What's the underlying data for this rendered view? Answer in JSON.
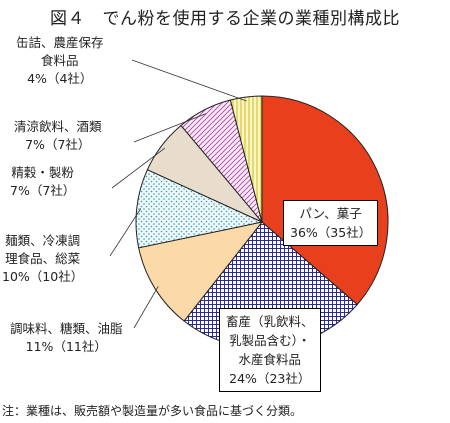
{
  "title": "図４　でん粉を使用する企業の業種別構成比",
  "note": "注：業種は、販売額や製造量が多い食品に基づく分類。",
  "chart_data": {
    "type": "pie",
    "title": "図４　でん粉を使用する企業の業種別構成比",
    "start": "12 o'clock, clockwise",
    "slices": [
      {
        "label_lines": [
          "パン、菓子",
          "36%（35社）"
        ],
        "name": "パン、菓子",
        "percent": 36,
        "companies": 35,
        "color": "#e8401c",
        "pattern": "solid"
      },
      {
        "label_lines": [
          "畜産（乳飲料、",
          "乳製品含む）・",
          "水産食料品",
          "24%（23社）"
        ],
        "name": "畜産（乳飲料、乳製品含む）・水産食料品",
        "percent": 24,
        "companies": 23,
        "color": "#2a2a9a",
        "pattern": "grid"
      },
      {
        "label_lines": [
          "調味料、糖類、油脂",
          "11%（11社）"
        ],
        "name": "調味料、糖類、油脂",
        "percent": 11,
        "companies": 11,
        "color": "#fbd9a8",
        "pattern": "solid"
      },
      {
        "label_lines": [
          "麺類、冷凍調",
          "理食品、総菜",
          "10%（10社）"
        ],
        "name": "麺類、冷凍調理食品、総菜",
        "percent": 10,
        "companies": 10,
        "color": "#3a9ab0",
        "pattern": "dots"
      },
      {
        "label_lines": [
          "精穀・製粉",
          "7%（7社）"
        ],
        "name": "精穀・製粉",
        "percent": 7,
        "companies": 7,
        "color": "#e8ddcc",
        "pattern": "solid"
      },
      {
        "label_lines": [
          "清涼飲料、酒類",
          "7%（7社）"
        ],
        "name": "清涼飲料、酒類",
        "percent": 7,
        "companies": 7,
        "color": "#b040a8",
        "pattern": "diagonal"
      },
      {
        "label_lines": [
          "缶詰、農産保存",
          "食料品",
          "4%（4社）"
        ],
        "name": "缶詰、農産保存食料品",
        "percent": 4,
        "companies": 4,
        "color": "#f4f0a0",
        "pattern": "vertical"
      }
    ]
  }
}
